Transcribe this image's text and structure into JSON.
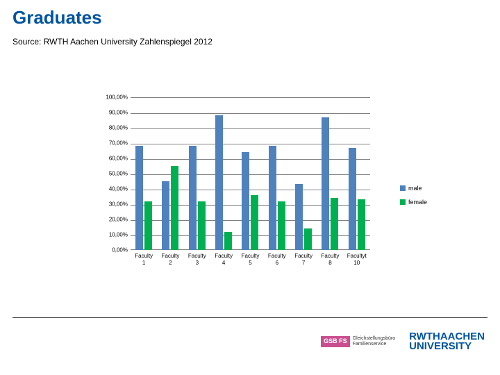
{
  "title": "Graduates",
  "title_color": "#00549f",
  "source": "Source: RWTH Aachen University Zahlenspiegel 2012",
  "chart": {
    "type": "bar",
    "ylim": [
      0,
      100
    ],
    "ytick_step": 10,
    "yticks": [
      "0,00%",
      "10,00%",
      "20,00%",
      "30,00%",
      "40,00%",
      "50,00%",
      "60,00%",
      "70,00%",
      "80,00%",
      "90,00%",
      "100,00%"
    ],
    "categories": [
      "Faculty 1",
      "Faculty 2",
      "Faculty 3",
      "Faculty 4",
      "Faculty 5",
      "Faculty 6",
      "Faculty 7",
      "Faculty 8",
      "Facultyt 10"
    ],
    "series": [
      {
        "name": "male",
        "color": "#4f81bd",
        "values": [
          68,
          45,
          68,
          88,
          64,
          68,
          43,
          87,
          67
        ]
      },
      {
        "name": "female",
        "color": "#00b050",
        "values": [
          32,
          55,
          32,
          12,
          36,
          32,
          14,
          34,
          33
        ]
      }
    ],
    "grid_color": "#808080",
    "background_color": "#ffffff",
    "label_fontsize": 8
  },
  "legend": {
    "items": [
      {
        "label": "male",
        "color": "#4f81bd"
      },
      {
        "label": "female",
        "color": "#00b050"
      }
    ]
  },
  "footer": {
    "gsb_box": "GSB FS",
    "gsb_box_bg": "#c94f8f",
    "gsb_line1": "Gleichstellungsbüro",
    "gsb_line2": "Familienservice",
    "rwth_line1": "RWTHAACHEN",
    "rwth_line2": "UNIVERSITY",
    "rwth_color": "#00549f"
  }
}
